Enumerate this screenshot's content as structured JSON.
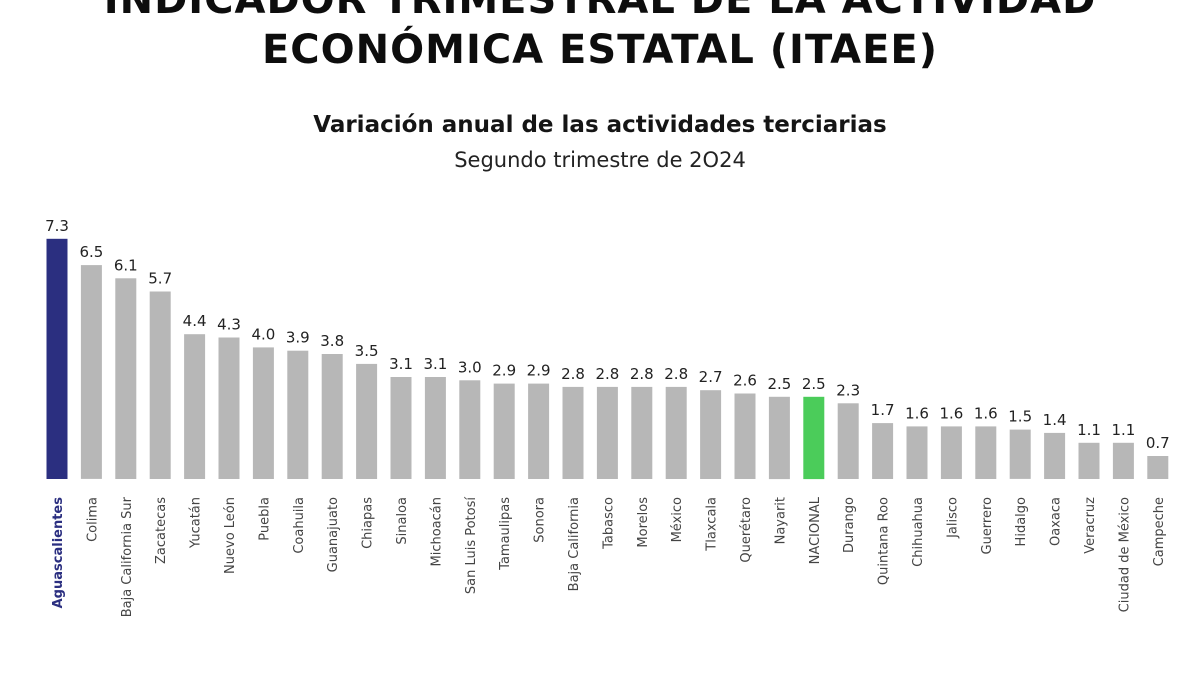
{
  "header": {
    "title_line1": "INDICADOR TRIMESTRAL DE LA ACTIVIDAD",
    "title_line2": "ECONÓMICA ESTATAL (ITAEE)",
    "subtitle": "Variación anual de las actividades terciarias",
    "period": "Segundo trimestre de 2O24"
  },
  "colors": {
    "default_bar": "#b7b7b7",
    "highlight_bar": "#2b2f80",
    "national_bar": "#4bcc5a",
    "highlight_label": "#2b2f80",
    "label": "#444444",
    "value_text": "#222222"
  },
  "chart_data": {
    "type": "bar",
    "title": "Variación anual de las actividades terciarias",
    "subtitle": "Segundo trimestre de 2O24",
    "xlabel": "",
    "ylabel": "",
    "ylim": [
      0,
      8
    ],
    "grid": false,
    "highlight": "Aguascalientes",
    "national": "NACIONAL",
    "categories": [
      "Aguascalientes",
      "Colima",
      "Baja California Sur",
      "Zacatecas",
      "Yucatán",
      "Nuevo León",
      "Puebla",
      "Coahuila",
      "Guanajuato",
      "Chiapas",
      "Sinaloa",
      "Michoacán",
      "San Luis Potosí",
      "Tamaulipas",
      "Sonora",
      "Baja California",
      "Tabasco",
      "Morelos",
      "México",
      "Tlaxcala",
      "Querétaro",
      "Nayarit",
      "NACIONAL",
      "Durango",
      "Quintana Roo",
      "Chihuahua",
      "Jalisco",
      "Guerrero",
      "Hidalgo",
      "Oaxaca",
      "Veracruz",
      "Ciudad de México",
      "Campeche"
    ],
    "values": [
      7.3,
      6.5,
      6.1,
      5.7,
      4.4,
      4.3,
      4.0,
      3.9,
      3.8,
      3.5,
      3.1,
      3.1,
      3.0,
      2.9,
      2.9,
      2.8,
      2.8,
      2.8,
      2.8,
      2.7,
      2.6,
      2.5,
      2.5,
      2.3,
      1.7,
      1.6,
      1.6,
      1.6,
      1.5,
      1.4,
      1.1,
      1.1,
      0.7
    ],
    "value_labels": [
      "7.3",
      "6.5",
      "6.1",
      "5.7",
      "4.4",
      "4.3",
      "4.0",
      "3.9",
      "3.8",
      "3.5",
      "3.1",
      "3.1",
      "3.0",
      "2.9",
      "2.9",
      "2.8",
      "2.8",
      "2.8",
      "2.8",
      "2.7",
      "2.6",
      "2.5",
      "2.5",
      "2.3",
      "1.7",
      "1.6",
      "1.6",
      "1.6",
      "1.5",
      "1.4",
      "1.1",
      "1.1",
      "0.7"
    ]
  }
}
